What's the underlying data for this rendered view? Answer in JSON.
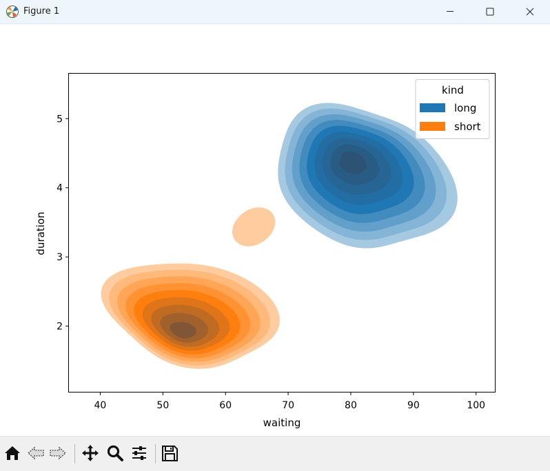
{
  "window": {
    "title": "Figure 1",
    "controls": [
      "minimize",
      "maximize",
      "close"
    ]
  },
  "toolbar": {
    "buttons": [
      "home-icon",
      "back-icon",
      "forward-icon",
      "pan-icon",
      "zoom-icon",
      "configure-subplots-icon",
      "save-icon"
    ]
  },
  "chart_data": {
    "type": "kde-filled-contour",
    "title": "",
    "xlabel": "waiting",
    "ylabel": "duration",
    "xlim": [
      35,
      103
    ],
    "ylim": [
      1.05,
      5.65
    ],
    "xticks": [
      40,
      50,
      60,
      70,
      80,
      90,
      100
    ],
    "yticks": [
      2,
      3,
      4,
      5
    ],
    "grid": false,
    "legend": {
      "title": "kind",
      "placement": "top-right",
      "entries": [
        "long",
        "short"
      ]
    },
    "series": [
      {
        "name": "long",
        "color": "#1f77b4",
        "peak": {
          "x": 80,
          "y": 4.4
        },
        "extent": {
          "x": [
            67,
            97
          ],
          "y": [
            3.05,
            5.25
          ]
        },
        "levels": 9
      },
      {
        "name": "short",
        "color": "#ff7f0e",
        "peak": {
          "x": 53,
          "y": 1.9
        },
        "extent": {
          "x": [
            40,
            69
          ],
          "y": [
            1.38,
            3.0
          ]
        },
        "levels": 9,
        "secondary_blob": {
          "x": [
            61,
            68
          ],
          "y": [
            3.17,
            3.7
          ]
        }
      }
    ]
  }
}
